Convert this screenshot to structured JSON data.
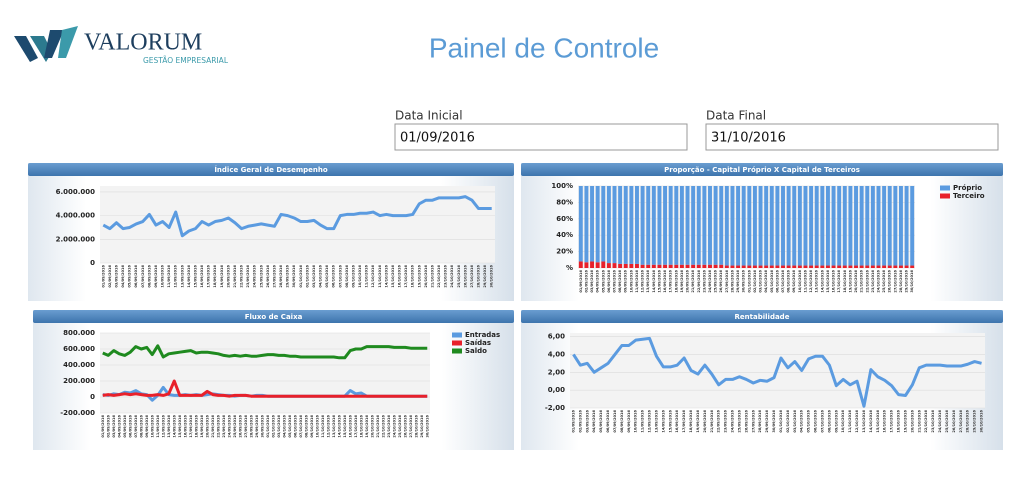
{
  "header": {
    "logo": "VALORUM",
    "logo_subtitle": "GESTÃO EMPRESARIAL",
    "title": "Painel de Controle"
  },
  "filters": {
    "start_label": "Data Inicial",
    "start_value": "01/09/2016",
    "end_label": "Data Final",
    "end_value": "31/10/2016"
  },
  "chart_data": [
    {
      "type": "line",
      "title": "Índice Geral de Desempenho",
      "color": "#5b9be0",
      "grid": true,
      "categories": [
        "01/09/2016",
        "02/09/2016",
        "03/09/2016",
        "04/09/2016",
        "05/09/2016",
        "06/09/2016",
        "07/09/2016",
        "08/09/2016",
        "09/09/2016",
        "10/09/2016",
        "11/09/2016",
        "12/09/2016",
        "13/09/2016",
        "14/09/2016",
        "15/09/2016",
        "16/09/2016",
        "17/09/2016",
        "18/09/2016",
        "19/09/2016",
        "20/09/2016",
        "21/09/2016",
        "22/09/2016",
        "23/09/2016",
        "24/09/2016",
        "25/09/2016",
        "26/09/2016",
        "27/09/2016",
        "28/09/2016",
        "29/09/2016",
        "30/09/2016",
        "01/10/2016",
        "02/10/2016",
        "03/10/2016",
        "04/10/2016",
        "05/10/2016",
        "06/10/2016",
        "07/10/2016",
        "08/10/2016",
        "09/10/2016",
        "10/10/2016",
        "11/10/2016",
        "12/10/2016",
        "13/10/2016",
        "14/10/2016",
        "15/10/2016",
        "16/10/2016",
        "17/10/2016",
        "18/10/2016",
        "19/10/2016",
        "20/10/2016",
        "21/10/2016",
        "22/10/2016",
        "23/10/2016",
        "24/10/2016",
        "25/10/2016",
        "26/10/2016",
        "27/10/2016",
        "28/10/2016",
        "29/10/2016",
        "30/10/2016"
      ],
      "values": [
        3200000,
        2900000,
        3400000,
        2900000,
        3000000,
        3300000,
        3500000,
        4100000,
        3200000,
        3500000,
        3000000,
        4300000,
        2300000,
        2700000,
        2900000,
        3500000,
        3200000,
        3500000,
        3600000,
        3800000,
        3400000,
        2900000,
        3100000,
        3200000,
        3300000,
        3200000,
        3100000,
        4100000,
        4000000,
        3800000,
        3500000,
        3500000,
        3600000,
        3200000,
        2900000,
        2900000,
        4000000,
        4100000,
        4100000,
        4200000,
        4200000,
        4300000,
        4000000,
        4100000,
        4000000,
        4000000,
        4000000,
        4100000,
        5000000,
        5300000,
        5300000,
        5500000,
        5500000,
        5500000,
        5500000,
        5600000,
        5300000,
        4600000,
        4600000,
        4600000
      ],
      "ylim": [
        0,
        6500000
      ],
      "yticks": [
        0,
        {
          "value": 2000000,
          "label": "2.000.000"
        },
        {
          "value": 4000000,
          "label": "4.000.000"
        },
        {
          "value": 6000000,
          "label": "6.000.000"
        }
      ]
    },
    {
      "type": "bar",
      "stacked": true,
      "title": "Proporção - Capital Próprio X Capital de Terceiros",
      "legend": "right",
      "grid": true,
      "categories": [
        "01/09/2016",
        "02/09/2016",
        "03/09/2016",
        "04/09/2016",
        "05/09/2016",
        "06/09/2016",
        "07/09/2016",
        "08/09/2016",
        "09/09/2016",
        "10/09/2016",
        "11/09/2016",
        "12/09/2016",
        "13/09/2016",
        "14/09/2016",
        "15/09/2016",
        "16/09/2016",
        "17/09/2016",
        "18/09/2016",
        "19/09/2016",
        "20/09/2016",
        "21/09/2016",
        "22/09/2016",
        "23/09/2016",
        "24/09/2016",
        "25/09/2016",
        "26/09/2016",
        "27/09/2016",
        "28/09/2016",
        "29/09/2016",
        "30/09/2016",
        "01/10/2016",
        "02/10/2016",
        "03/10/2016",
        "04/10/2016",
        "05/10/2016",
        "06/10/2016",
        "07/10/2016",
        "08/10/2016",
        "09/10/2016",
        "10/10/2016",
        "11/10/2016",
        "12/10/2016",
        "13/10/2016",
        "14/10/2016",
        "15/10/2016",
        "16/10/2016",
        "17/10/2016",
        "18/10/2016",
        "19/10/2016",
        "20/10/2016",
        "21/10/2016",
        "22/10/2016",
        "23/10/2016",
        "24/10/2016",
        "25/10/2016",
        "26/10/2016",
        "27/10/2016",
        "28/10/2016",
        "29/10/2016",
        "30/10/2016"
      ],
      "series": [
        {
          "name": "Terceiro",
          "color": "#e8202a",
          "values": [
            8,
            7,
            8,
            7,
            8,
            6,
            6,
            5,
            5,
            5,
            5,
            4,
            4,
            4,
            4,
            4,
            4,
            4,
            4,
            4,
            4,
            4,
            4,
            4,
            4,
            4,
            3,
            3,
            3,
            3,
            3,
            3,
            3,
            3,
            3,
            3,
            3,
            3,
            3,
            3,
            3,
            3,
            3,
            3,
            3,
            3,
            3,
            3,
            3,
            3,
            3,
            3,
            3,
            3,
            3,
            3,
            3,
            3,
            3,
            3
          ]
        },
        {
          "name": "Próprio",
          "color": "#5b9be0",
          "values": [
            92,
            93,
            92,
            93,
            92,
            94,
            94,
            95,
            95,
            95,
            95,
            96,
            96,
            96,
            96,
            96,
            96,
            96,
            96,
            96,
            96,
            96,
            96,
            96,
            96,
            96,
            97,
            97,
            97,
            97,
            97,
            97,
            97,
            97,
            97,
            97,
            97,
            97,
            97,
            97,
            97,
            97,
            97,
            97,
            97,
            97,
            97,
            97,
            97,
            97,
            97,
            97,
            97,
            97,
            97,
            97,
            97,
            97,
            97,
            97
          ]
        }
      ],
      "ylim": [
        0,
        100
      ],
      "yticks": [
        {
          "value": 0,
          "label": "%"
        },
        {
          "value": 20,
          "label": "20%"
        },
        {
          "value": 40,
          "label": "40%"
        },
        {
          "value": 60,
          "label": "60%"
        },
        {
          "value": 80,
          "label": "80%"
        },
        {
          "value": 100,
          "label": "100%"
        }
      ]
    },
    {
      "type": "line",
      "title": "Fluxo de Caixa",
      "legend": "right",
      "grid": true,
      "categories": [
        "01/09/2016",
        "02/09/2016",
        "03/09/2016",
        "04/09/2016",
        "05/09/2016",
        "06/09/2016",
        "07/09/2016",
        "08/09/2016",
        "09/09/2016",
        "10/09/2016",
        "11/09/2016",
        "12/09/2016",
        "13/09/2016",
        "14/09/2016",
        "15/09/2016",
        "16/09/2016",
        "17/09/2016",
        "18/09/2016",
        "19/09/2016",
        "20/09/2016",
        "21/09/2016",
        "22/09/2016",
        "23/09/2016",
        "24/09/2016",
        "25/09/2016",
        "26/09/2016",
        "27/09/2016",
        "28/09/2016",
        "29/09/2016",
        "30/09/2016",
        "01/10/2016",
        "02/10/2016",
        "03/10/2016",
        "04/10/2016",
        "05/10/2016",
        "06/10/2016",
        "07/10/2016",
        "08/10/2016",
        "09/10/2016",
        "10/10/2016",
        "11/10/2016",
        "12/10/2016",
        "13/10/2016",
        "14/10/2016",
        "15/10/2016",
        "16/10/2016",
        "17/10/2016",
        "18/10/2016",
        "19/10/2016",
        "20/10/2016",
        "21/10/2016",
        "22/10/2016",
        "23/10/2016",
        "24/10/2016",
        "25/10/2016",
        "26/10/2016",
        "27/10/2016",
        "28/10/2016",
        "29/10/2016",
        "30/10/2016"
      ],
      "series": [
        {
          "name": "Entradas",
          "color": "#5b9be0",
          "values": [
            30000,
            20000,
            40000,
            30000,
            60000,
            50000,
            80000,
            40000,
            30000,
            -40000,
            20000,
            120000,
            30000,
            20000,
            20000,
            30000,
            20000,
            30000,
            20000,
            30000,
            40000,
            30000,
            20000,
            20000,
            10000,
            20000,
            20000,
            10000,
            20000,
            20000,
            10000,
            10000,
            10000,
            10000,
            10000,
            10000,
            10000,
            10000,
            10000,
            10000,
            10000,
            10000,
            10000,
            10000,
            10000,
            80000,
            40000,
            50000,
            10000,
            10000,
            10000,
            10000,
            10000,
            10000,
            10000,
            10000,
            10000,
            10000,
            10000,
            10000
          ]
        },
        {
          "name": "Saídas",
          "color": "#e8202a",
          "values": [
            20000,
            30000,
            20000,
            30000,
            40000,
            30000,
            40000,
            30000,
            20000,
            20000,
            30000,
            20000,
            40000,
            200000,
            20000,
            20000,
            20000,
            20000,
            20000,
            70000,
            30000,
            20000,
            20000,
            10000,
            20000,
            20000,
            20000,
            10000,
            10000,
            10000,
            10000,
            10000,
            10000,
            10000,
            10000,
            10000,
            10000,
            10000,
            10000,
            10000,
            10000,
            10000,
            10000,
            10000,
            10000,
            10000,
            10000,
            10000,
            10000,
            10000,
            10000,
            10000,
            10000,
            10000,
            10000,
            10000,
            10000,
            10000,
            10000,
            10000
          ]
        },
        {
          "name": "Saldo",
          "color": "#1f8a1f",
          "values": [
            550000,
            520000,
            580000,
            540000,
            520000,
            560000,
            630000,
            600000,
            620000,
            530000,
            640000,
            500000,
            540000,
            550000,
            560000,
            570000,
            580000,
            550000,
            560000,
            560000,
            550000,
            540000,
            520000,
            510000,
            520000,
            510000,
            520000,
            510000,
            510000,
            520000,
            530000,
            530000,
            520000,
            520000,
            510000,
            510000,
            500000,
            500000,
            500000,
            500000,
            500000,
            500000,
            500000,
            490000,
            490000,
            580000,
            600000,
            600000,
            630000,
            630000,
            630000,
            630000,
            630000,
            620000,
            620000,
            620000,
            610000,
            610000,
            610000,
            610000
          ]
        }
      ],
      "ylim": [
        -200000,
        800000
      ],
      "yticks": [
        {
          "value": -200000,
          "label": "-200.000"
        },
        0,
        {
          "value": 200000,
          "label": "200.000"
        },
        {
          "value": 400000,
          "label": "400.000"
        },
        {
          "value": 600000,
          "label": "600.000"
        },
        {
          "value": 800000,
          "label": "800.000"
        }
      ]
    },
    {
      "type": "line",
      "title": "Rentabilidade",
      "color": "#5b9be0",
      "grid": true,
      "categories": [
        "01/09/2016",
        "02/09/2016",
        "03/09/2016",
        "04/09/2016",
        "05/09/2016",
        "06/09/2016",
        "07/09/2016",
        "08/09/2016",
        "09/09/2016",
        "10/09/2016",
        "11/09/2016",
        "12/09/2016",
        "13/09/2016",
        "14/09/2016",
        "15/09/2016",
        "16/09/2016",
        "17/09/2016",
        "18/09/2016",
        "19/09/2016",
        "20/09/2016",
        "21/09/2016",
        "22/09/2016",
        "23/09/2016",
        "24/09/2016",
        "25/09/2016",
        "26/09/2016",
        "27/09/2016",
        "28/09/2016",
        "29/09/2016",
        "30/09/2016",
        "01/10/2016",
        "02/10/2016",
        "03/10/2016",
        "04/10/2016",
        "05/10/2016",
        "06/10/2016",
        "07/10/2016",
        "08/10/2016",
        "09/10/2016",
        "10/10/2016",
        "11/10/2016",
        "12/10/2016",
        "13/10/2016",
        "14/10/2016",
        "15/10/2016",
        "16/10/2016",
        "17/10/2016",
        "18/10/2016",
        "19/10/2016",
        "20/10/2016",
        "21/10/2016",
        "22/10/2016",
        "23/10/2016",
        "24/10/2016",
        "25/10/2016",
        "26/10/2016",
        "27/10/2016",
        "28/10/2016",
        "29/10/2016",
        "30/10/2016"
      ],
      "values": [
        4.0,
        2.8,
        3.0,
        2.0,
        2.5,
        3.0,
        4.0,
        5.0,
        5.0,
        5.6,
        5.7,
        5.8,
        3.8,
        2.6,
        2.6,
        2.8,
        3.6,
        2.2,
        1.8,
        2.8,
        1.8,
        0.6,
        1.2,
        1.2,
        1.5,
        1.2,
        0.8,
        1.1,
        1.0,
        1.4,
        3.6,
        2.5,
        3.2,
        2.2,
        3.5,
        3.8,
        3.8,
        2.8,
        0.5,
        1.2,
        0.6,
        1.0,
        -1.8,
        2.3,
        1.5,
        1.1,
        0.5,
        -0.5,
        -0.6,
        0.6,
        2.5,
        2.8,
        2.8,
        2.8,
        2.7,
        2.7,
        2.7,
        2.9,
        3.2,
        3.0
      ],
      "ylim": [
        -2,
        6.4
      ],
      "yticks": [
        {
          "value": -2,
          "label": "-2,00"
        },
        {
          "value": 0,
          "label": "0,00"
        },
        {
          "value": 2,
          "label": "2,00"
        },
        {
          "value": 4,
          "label": "4,00"
        },
        {
          "value": 6,
          "label": "6,00"
        }
      ]
    }
  ]
}
